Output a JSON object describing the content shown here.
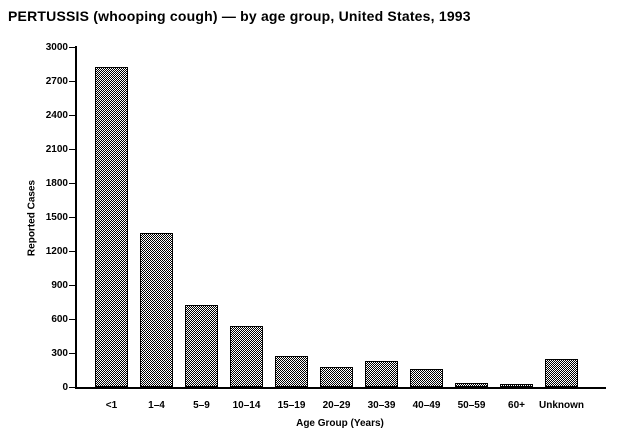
{
  "page": {
    "background_color": "#ffffff",
    "foreground_color": "#000000"
  },
  "chart_data": {
    "type": "bar",
    "title": "PERTUSSIS (whooping cough) — by age group, United States, 1993",
    "xlabel": "Age Group (Years)",
    "ylabel": "Reported Cases",
    "categories": [
      "<1",
      "1–4",
      "5–9",
      "10–14",
      "15–19",
      "20–29",
      "30–39",
      "40–49",
      "50–59",
      "60+",
      "Unknown"
    ],
    "values": [
      2825,
      1355,
      720,
      535,
      270,
      175,
      230,
      155,
      35,
      25,
      245
    ],
    "ylim": [
      0,
      3000
    ],
    "ytick_step": 300,
    "yticks": [
      0,
      300,
      600,
      900,
      1200,
      1500,
      1800,
      2100,
      2400,
      2700,
      3000
    ],
    "grid": false,
    "legend": null,
    "bar_fill": "black-white checker dither",
    "bar_border_color": "#000000",
    "axis_color": "#000000",
    "background": "#ffffff"
  }
}
